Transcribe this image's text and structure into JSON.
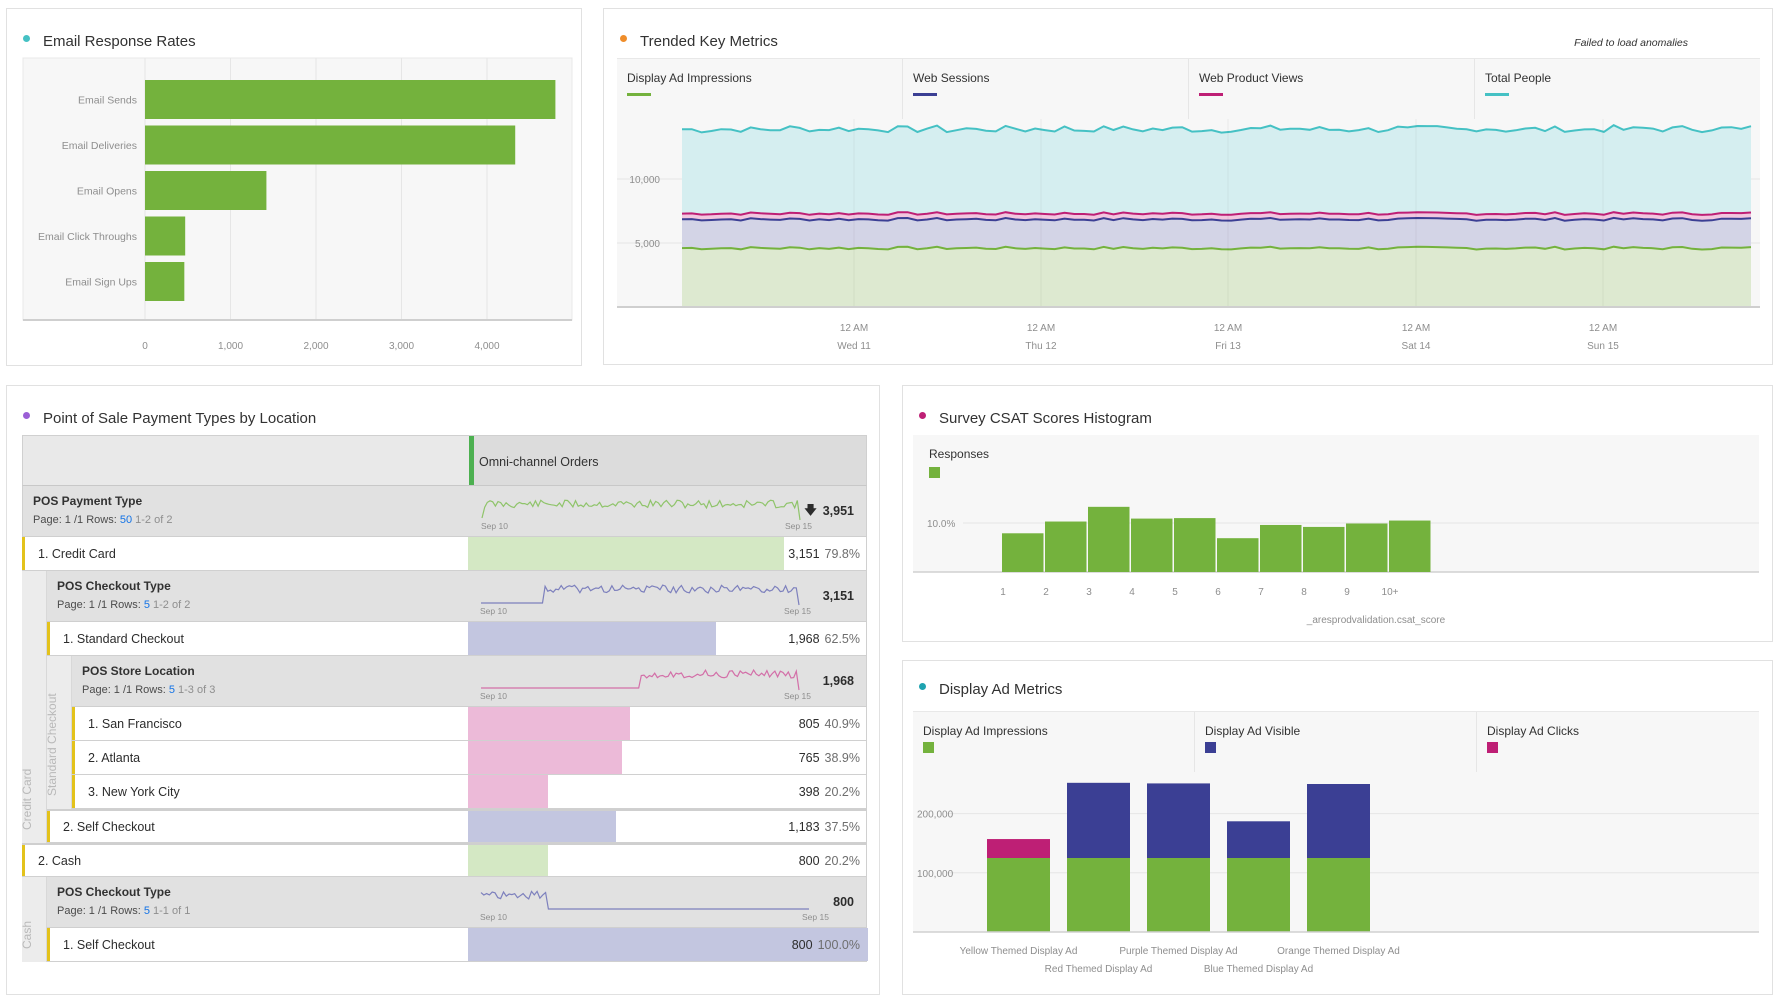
{
  "colors": {
    "green": "#74b23d",
    "navy": "#3b3f94",
    "magenta": "#be1f75",
    "teal": "#45c1c4",
    "orange": "#ef8d2a",
    "purple": "#9b5fd6",
    "yellow_marker": "#e3c21b",
    "link_blue": "#1473e6"
  },
  "panels": {
    "email": {
      "title": "Email Response Rates",
      "dot_color": "#45c1c4"
    },
    "trended": {
      "title": "Trended Key Metrics",
      "dot_color": "#ef8d2a",
      "anomaly_status": "Failed to load anomalies",
      "legend": [
        {
          "label": "Display Ad Impressions",
          "color": "#74b23d"
        },
        {
          "label": "Web Sessions",
          "color": "#3b3f94"
        },
        {
          "label": "Web Product Views",
          "color": "#be1f75"
        },
        {
          "label": "Total People",
          "color": "#45c1c4"
        }
      ]
    },
    "pos": {
      "title": "Point of Sale Payment Types by Location",
      "dot_color": "#9b5fd6",
      "column_header": "Omni-channel Orders",
      "sections": [
        {
          "dimension": "POS Payment Type",
          "page_label": "Page: 1 /1 Rows:",
          "rows_value": "50",
          "range": "1-2 of 2",
          "spark_start": "Sep 10",
          "spark_end": "Sep 15",
          "total": "3,951",
          "trend_icon": "arrow-down"
        },
        {
          "dimension": "POS Checkout Type",
          "page_label": "Page: 1 /1 Rows:",
          "rows_value": "5",
          "range": "1-2 of 2",
          "spark_start": "Sep 10",
          "spark_end": "Sep 15",
          "total": "3,151"
        },
        {
          "dimension": "POS Store Location",
          "page_label": "Page: 1 /1 Rows:",
          "rows_value": "5",
          "range": "1-3 of 3",
          "spark_start": "Sep 10",
          "spark_end": "Sep 15",
          "total": "1,968"
        },
        {
          "dimension": "POS Checkout Type",
          "page_label": "Page: 1 /1 Rows:",
          "rows_value": "5",
          "range": "1-1 of 1",
          "spark_start": "Sep 10",
          "spark_end": "Sep 15",
          "total": "800"
        }
      ],
      "rows": [
        {
          "label": "1. Credit Card",
          "value": "3,151",
          "pct": "79.8%",
          "share": 0.798
        },
        {
          "label": "1. Standard Checkout",
          "value": "1,968",
          "pct": "62.5%",
          "share": 0.625
        },
        {
          "label": "1. San Francisco",
          "value": "805",
          "pct": "40.9%",
          "share": 0.409
        },
        {
          "label": "2. Atlanta",
          "value": "765",
          "pct": "38.9%",
          "share": 0.389
        },
        {
          "label": "3. New York City",
          "value": "398",
          "pct": "20.2%",
          "share": 0.202
        },
        {
          "label": "2. Self Checkout",
          "value": "1,183",
          "pct": "37.5%",
          "share": 0.375
        },
        {
          "label": "2. Cash",
          "value": "800",
          "pct": "20.2%",
          "share": 0.202
        },
        {
          "label": "1. Self Checkout",
          "value": "800",
          "pct": "100.0%",
          "share": 1.0
        }
      ],
      "side_labels": {
        "credit_card": "Credit Card",
        "standard_checkout": "Standard Checkout",
        "cash": "Cash"
      }
    },
    "survey": {
      "title": "Survey CSAT Scores Histogram",
      "dot_color": "#be1f75",
      "legend_label": "Responses"
    },
    "display_ad": {
      "title": "Display Ad Metrics",
      "dot_color": "#1ea3b0",
      "legend": [
        {
          "label": "Display Ad Impressions",
          "color": "#74b23d"
        },
        {
          "label": "Display Ad Visible",
          "color": "#3b3f94"
        },
        {
          "label": "Display Ad Clicks",
          "color": "#be1f75"
        }
      ]
    }
  },
  "chart_data": [
    {
      "id": "email",
      "type": "bar",
      "orientation": "horizontal",
      "title": "Email Response Rates",
      "categories": [
        "Email Sends",
        "Email Deliveries",
        "Email Opens",
        "Email Click Throughs",
        "Email Sign Ups"
      ],
      "values": [
        4800,
        4330,
        1420,
        470,
        460
      ],
      "xlim": [
        0,
        4900
      ],
      "xticks": [
        0,
        1000,
        2000,
        3000,
        4000
      ],
      "xtick_labels": [
        "0",
        "1,000",
        "2,000",
        "3,000",
        "4,000"
      ],
      "grid": true
    },
    {
      "id": "trended",
      "type": "area",
      "title": "Trended Key Metrics",
      "ylim": [
        0,
        15000
      ],
      "yticks": [
        5000,
        10000
      ],
      "ytick_labels": [
        "5,000",
        "10,000"
      ],
      "xtick_labels": [
        [
          "12 AM",
          "Wed 11"
        ],
        [
          "12 AM",
          "Thu 12"
        ],
        [
          "12 AM",
          "Fri 13"
        ],
        [
          "12 AM",
          "Sat 14"
        ],
        [
          "12 AM",
          "Sun 15"
        ]
      ],
      "series": [
        {
          "name": "Display Ad Impressions",
          "color": "#74b23d",
          "mean": 4600
        },
        {
          "name": "Web Sessions",
          "color": "#3b3f94",
          "mean": 6850
        },
        {
          "name": "Web Product Views",
          "color": "#be1f75",
          "mean": 7300
        },
        {
          "name": "Total People",
          "color": "#45c1c4",
          "mean": 13900
        }
      ],
      "legend": "top"
    },
    {
      "id": "survey",
      "type": "bar",
      "title": "Survey CSAT Scores Histogram",
      "xlabel": "_aresprodvalidation.csat_score",
      "categories": [
        "1",
        "2",
        "3",
        "4",
        "5",
        "6",
        "7",
        "8",
        "9",
        "10+"
      ],
      "series": [
        {
          "name": "Responses",
          "values": [
            7.9,
            10.3,
            13.3,
            10.9,
            11.0,
            6.9,
            9.6,
            9.2,
            9.9,
            10.5
          ]
        }
      ],
      "yunit": "%",
      "ylim": [
        0,
        15
      ],
      "yticks": [
        10
      ],
      "ytick_labels": [
        "10.0%"
      ],
      "legend": "top-left"
    },
    {
      "id": "display_ad",
      "type": "bar",
      "stacked": true,
      "title": "Display Ad Metrics",
      "categories": [
        "Yellow Themed Display Ad",
        "Red Themed Display Ad",
        "Purple Themed Display Ad",
        "Blue Themed Display Ad",
        "Orange Themed Display Ad"
      ],
      "series": [
        {
          "name": "Display Ad Impressions",
          "values": [
            125000,
            125000,
            125000,
            125000,
            125000
          ]
        },
        {
          "name": "Display Ad Visible",
          "values": [
            0,
            127000,
            126000,
            62000,
            125000
          ]
        },
        {
          "name": "Display Ad Clicks",
          "values": [
            32000,
            0,
            0,
            0,
            0
          ]
        }
      ],
      "ylim": [
        0,
        300000
      ],
      "yticks": [
        100000,
        200000
      ],
      "ytick_labels": [
        "100,000",
        "200,000"
      ],
      "legend": "top"
    }
  ]
}
